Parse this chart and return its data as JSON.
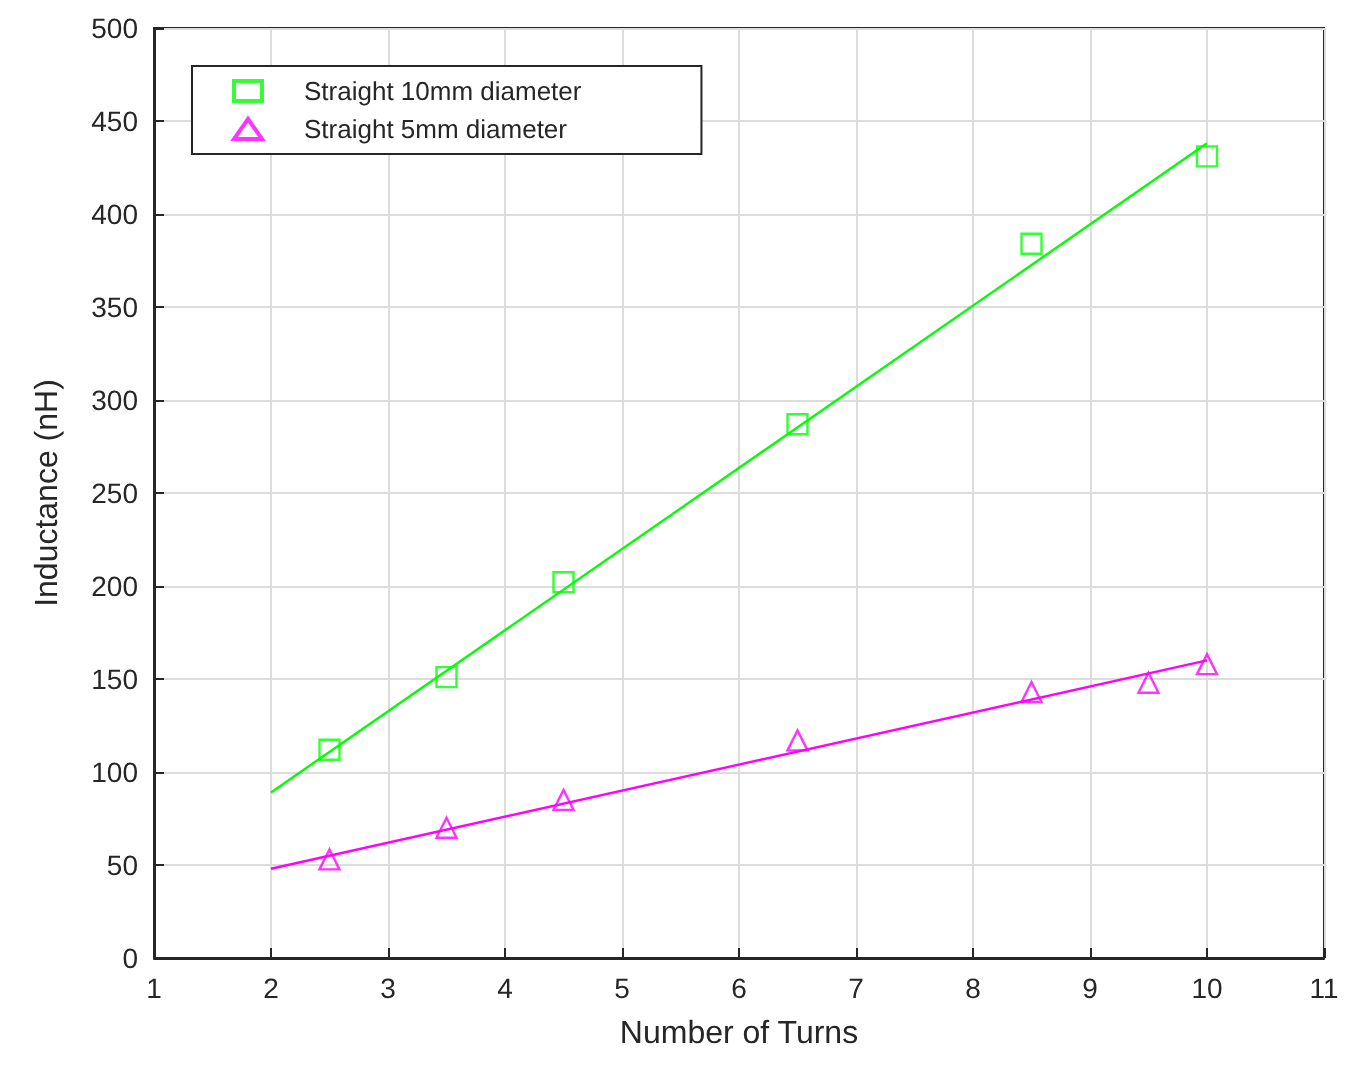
{
  "chart_data": {
    "type": "scatter",
    "xlabel": "Number of Turns",
    "ylabel": "Inductance (nH)",
    "xlim": [
      1,
      11
    ],
    "xticks": [
      1,
      2,
      3,
      4,
      5,
      6,
      7,
      8,
      9,
      10,
      11
    ],
    "ylim": [
      0,
      500
    ],
    "yticks": [
      0,
      50,
      100,
      150,
      200,
      250,
      300,
      350,
      400,
      450,
      500
    ],
    "grid": true,
    "legend": "top left",
    "series": [
      {
        "name": "Straight 10mm diameter",
        "marker": "square",
        "color": "#00ff00",
        "x": [
          2.5,
          3.5,
          4.5,
          6.5,
          8.5,
          10
        ],
        "values": [
          112,
          151,
          202,
          287,
          384,
          431
        ]
      },
      {
        "name": "Straight 5mm diameter",
        "marker": "triangle",
        "color": "#ff00ff",
        "x": [
          2.5,
          3.5,
          4.5,
          6.5,
          8.5,
          9.5,
          10
        ],
        "values": [
          53,
          70,
          85,
          117,
          143,
          148,
          158
        ]
      },
      {
        "type": "line",
        "marker": "none",
        "color": "#00ff00",
        "x": [
          2,
          10
        ],
        "values": [
          89,
          438
        ]
      },
      {
        "type": "line",
        "marker": "none",
        "color": "#ff00ff",
        "x": [
          2,
          10
        ],
        "values": [
          48,
          160
        ]
      }
    ]
  }
}
